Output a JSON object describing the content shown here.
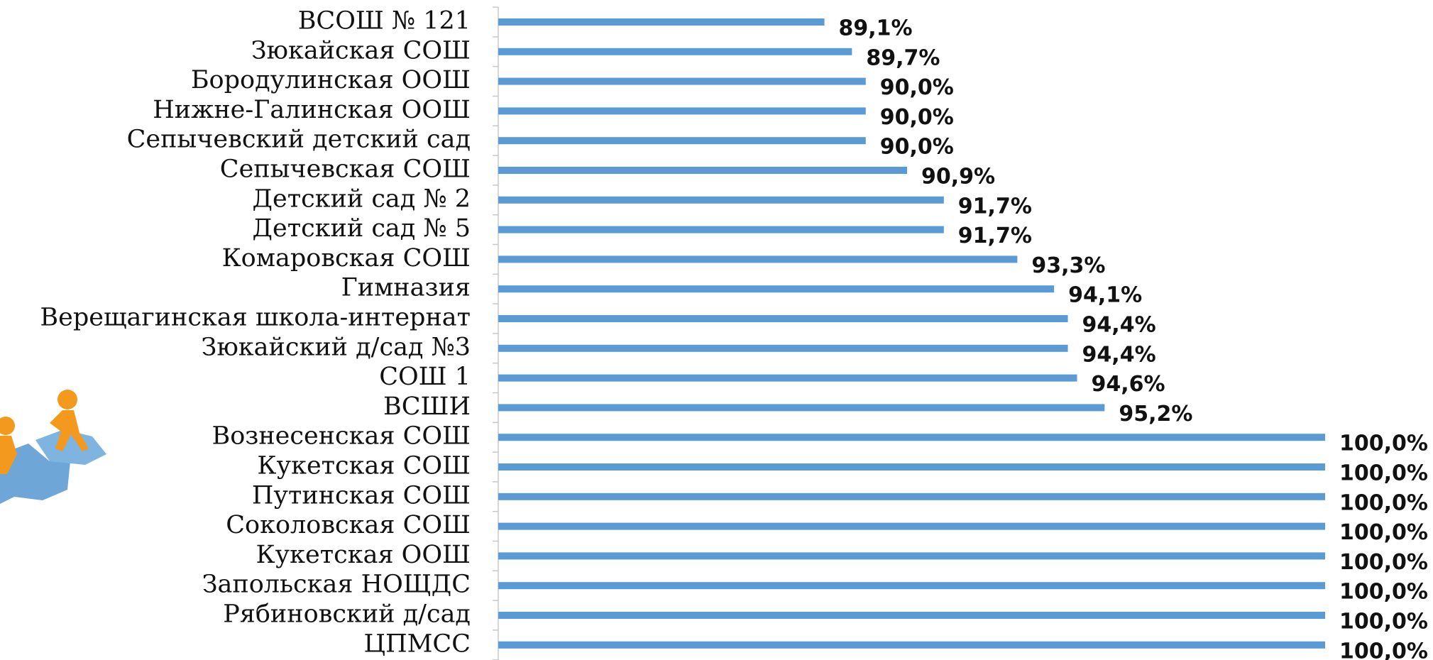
{
  "chart_data": {
    "type": "bar",
    "orientation": "horizontal",
    "categories": [
      "ВСОШ № 121",
      "Зюкайская СОШ",
      "Бородулинская ООШ",
      "Нижне-Галинская ООШ",
      "Сепычевский детский сад",
      "Сепычевская СОШ",
      "Детский сад № 2",
      "Детский сад № 5",
      "Комаровская СОШ",
      "Гимназия",
      "Верещагинская школа-интернат",
      "Зюкайский д/сад №3",
      "СОШ 1",
      "ВСШИ",
      "Вознесенская СОШ",
      "Кукетская СОШ",
      "Путинская СОШ",
      "Соколовская СОШ",
      "Кукетская ООШ",
      "Запольская НОЩДС",
      "Рябиновский д/сад",
      "ЦПМСС"
    ],
    "values": [
      89.1,
      89.7,
      90.0,
      90.0,
      90.0,
      90.9,
      91.7,
      91.7,
      93.3,
      94.1,
      94.4,
      94.4,
      94.6,
      95.2,
      100.0,
      100.0,
      100.0,
      100.0,
      100.0,
      100.0,
      100.0,
      100.0
    ],
    "value_labels": [
      "89,1%",
      "89,7%",
      "90,0%",
      "90,0%",
      "90,0%",
      "90,9%",
      "91,7%",
      "91,7%",
      "93,3%",
      "94,1%",
      "94,4%",
      "94,4%",
      "94,6%",
      "95,2%",
      "100,0%",
      "100,0%",
      "100,0%",
      "100,0%",
      "100,0%",
      "100,0%",
      "100,0%",
      "100,0%"
    ],
    "color": "#5b9bd5",
    "xlim": [
      82,
      100
    ],
    "grid": false
  }
}
